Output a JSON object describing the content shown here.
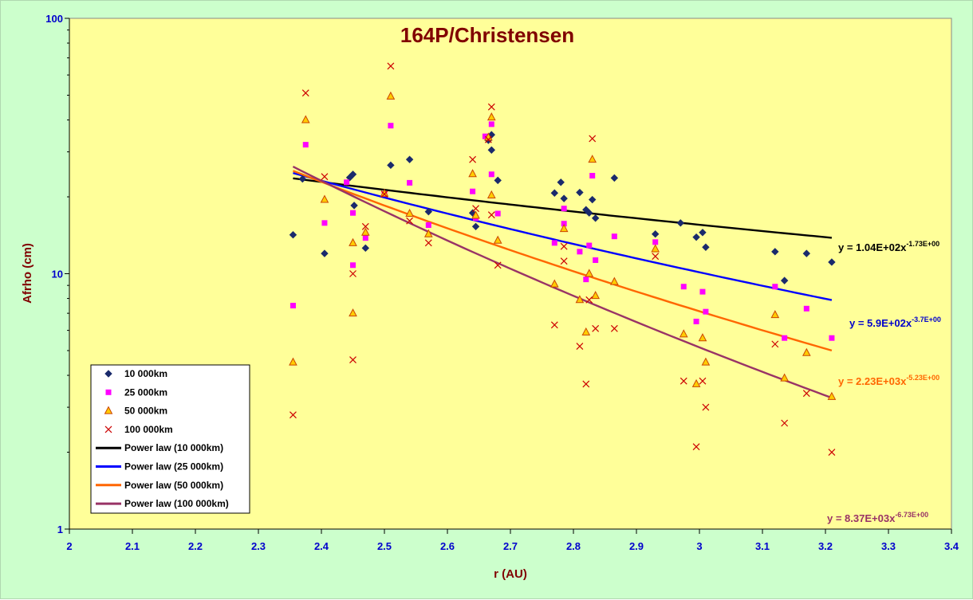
{
  "chart_data": {
    "type": "scatter",
    "title": "164P/Christensen",
    "xlabel": "r (AU)",
    "ylabel": "Afrho (cm)",
    "xlim": [
      2,
      3.4
    ],
    "ylim": [
      1,
      100
    ],
    "yscale": "log",
    "x_ticks": [
      "2",
      "2.1",
      "2.2",
      "2.3",
      "2.4",
      "2.5",
      "2.6",
      "2.7",
      "2.8",
      "2.9",
      "3",
      "3.1",
      "3.2",
      "3.3",
      "3.4"
    ],
    "y_ticks": [
      "1",
      "10",
      "100"
    ],
    "grid": false,
    "legend_position": "bottom-left",
    "colors": {
      "background": "#ccffcc",
      "plot_area": "#ffff99",
      "axis_text": "#0000cc",
      "title": "#800000"
    },
    "series": [
      {
        "name": "10 000km",
        "marker": "diamond",
        "color": "#1a2a6c",
        "points": [
          [
            2.355,
            14.2
          ],
          [
            2.37,
            23.5
          ],
          [
            2.405,
            12
          ],
          [
            2.445,
            23.8
          ],
          [
            2.45,
            24.5
          ],
          [
            2.452,
            18.5
          ],
          [
            2.47,
            12.6
          ],
          [
            2.51,
            26.6
          ],
          [
            2.54,
            28
          ],
          [
            2.57,
            17.5
          ],
          [
            2.64,
            17.3
          ],
          [
            2.645,
            15.3
          ],
          [
            2.665,
            33.3
          ],
          [
            2.67,
            35
          ],
          [
            2.67,
            30.5
          ],
          [
            2.68,
            23.2
          ],
          [
            2.77,
            20.7
          ],
          [
            2.78,
            22.8
          ],
          [
            2.785,
            19.7
          ],
          [
            2.81,
            20.8
          ],
          [
            2.82,
            17.8
          ],
          [
            2.825,
            17.3
          ],
          [
            2.83,
            19.5
          ],
          [
            2.835,
            16.5
          ],
          [
            2.865,
            23.7
          ],
          [
            2.93,
            14.3
          ],
          [
            2.97,
            15.8
          ],
          [
            2.995,
            13.9
          ],
          [
            3.005,
            14.5
          ],
          [
            3.01,
            12.7
          ],
          [
            3.12,
            12.2
          ],
          [
            3.135,
            9.4
          ],
          [
            3.17,
            12
          ],
          [
            3.21,
            11.1
          ]
        ]
      },
      {
        "name": "25 000km",
        "marker": "square",
        "color": "#ff00ff",
        "points": [
          [
            2.355,
            7.5
          ],
          [
            2.375,
            32
          ],
          [
            2.405,
            15.8
          ],
          [
            2.44,
            22.8
          ],
          [
            2.45,
            17.3
          ],
          [
            2.45,
            10.8
          ],
          [
            2.47,
            13.8
          ],
          [
            2.5,
            20.5
          ],
          [
            2.51,
            38
          ],
          [
            2.54,
            22.7
          ],
          [
            2.57,
            15.5
          ],
          [
            2.64,
            21
          ],
          [
            2.645,
            16.5
          ],
          [
            2.66,
            34.5
          ],
          [
            2.67,
            38.5
          ],
          [
            2.67,
            24.5
          ],
          [
            2.68,
            17.2
          ],
          [
            2.77,
            13.2
          ],
          [
            2.785,
            18
          ],
          [
            2.785,
            15.7
          ],
          [
            2.81,
            12.2
          ],
          [
            2.82,
            9.5
          ],
          [
            2.825,
            12.9
          ],
          [
            2.83,
            24.2
          ],
          [
            2.835,
            11.3
          ],
          [
            2.865,
            14
          ],
          [
            2.93,
            13.3
          ],
          [
            2.975,
            8.9
          ],
          [
            2.995,
            6.5
          ],
          [
            3.005,
            8.5
          ],
          [
            3.01,
            7.1
          ],
          [
            3.12,
            8.9
          ],
          [
            3.135,
            5.6
          ],
          [
            3.17,
            7.3
          ],
          [
            3.21,
            5.6
          ]
        ]
      },
      {
        "name": "50 000km",
        "marker": "triangle",
        "color": "#cc4400",
        "fill": "#ffcc00",
        "points": [
          [
            2.355,
            4.5
          ],
          [
            2.375,
            40
          ],
          [
            2.405,
            19.5
          ],
          [
            2.45,
            13.2
          ],
          [
            2.45,
            7
          ],
          [
            2.47,
            14.5
          ],
          [
            2.5,
            20.6
          ],
          [
            2.51,
            49.5
          ],
          [
            2.54,
            17.2
          ],
          [
            2.57,
            14.3
          ],
          [
            2.64,
            24.6
          ],
          [
            2.645,
            16.9
          ],
          [
            2.665,
            34.2
          ],
          [
            2.67,
            41
          ],
          [
            2.67,
            20.3
          ],
          [
            2.68,
            13.5
          ],
          [
            2.77,
            9.1
          ],
          [
            2.785,
            15
          ],
          [
            2.81,
            7.9
          ],
          [
            2.82,
            5.9
          ],
          [
            2.825,
            10
          ],
          [
            2.83,
            28
          ],
          [
            2.835,
            8.2
          ],
          [
            2.865,
            9.3
          ],
          [
            2.93,
            12.5
          ],
          [
            2.975,
            5.8
          ],
          [
            2.995,
            3.7
          ],
          [
            3.005,
            5.6
          ],
          [
            3.01,
            4.5
          ],
          [
            3.12,
            6.9
          ],
          [
            3.135,
            3.9
          ],
          [
            3.17,
            4.9
          ],
          [
            3.21,
            3.3
          ]
        ]
      },
      {
        "name": "100 000km",
        "marker": "x",
        "color": "#cc0000",
        "points": [
          [
            2.355,
            2.8
          ],
          [
            2.375,
            51
          ],
          [
            2.405,
            24
          ],
          [
            2.45,
            10
          ],
          [
            2.45,
            4.6
          ],
          [
            2.47,
            15.3
          ],
          [
            2.5,
            20.5
          ],
          [
            2.51,
            65
          ],
          [
            2.54,
            16.1
          ],
          [
            2.57,
            13.2
          ],
          [
            2.64,
            28
          ],
          [
            2.645,
            18
          ],
          [
            2.665,
            33.5
          ],
          [
            2.67,
            45
          ],
          [
            2.67,
            17
          ],
          [
            2.68,
            10.8
          ],
          [
            2.77,
            6.3
          ],
          [
            2.785,
            11.2
          ],
          [
            2.785,
            12.8
          ],
          [
            2.81,
            5.2
          ],
          [
            2.82,
            3.7
          ],
          [
            2.825,
            7.9
          ],
          [
            2.83,
            33.8
          ],
          [
            2.835,
            6.1
          ],
          [
            2.865,
            6.1
          ],
          [
            2.93,
            11.7
          ],
          [
            2.975,
            3.8
          ],
          [
            2.995,
            2.1
          ],
          [
            3.005,
            3.8
          ],
          [
            3.01,
            3
          ],
          [
            3.12,
            5.3
          ],
          [
            3.135,
            2.6
          ],
          [
            3.17,
            3.4
          ],
          [
            3.21,
            2
          ]
        ]
      }
    ],
    "trendlines": [
      {
        "name": "Power law (10 000km)",
        "color": "#000000",
        "a": 104,
        "b": -1.73,
        "x_range": [
          2.355,
          3.21
        ],
        "equation": "y = 1.04E+02x",
        "exponent": "-1.73E+00",
        "label_color": "#000000"
      },
      {
        "name": "Power law (25 000km)",
        "color": "#0000ff",
        "a": 590,
        "b": -3.7,
        "x_range": [
          2.355,
          3.21
        ],
        "equation": "y = 5.9E+02x",
        "exponent": "-3.7E+00",
        "label_color": "#0000cc"
      },
      {
        "name": "Power law (50 000km)",
        "color": "#ff6600",
        "a": 2230,
        "b": -5.23,
        "x_range": [
          2.355,
          3.21
        ],
        "equation": "y = 2.23E+03x",
        "exponent": "-5.23E+00",
        "label_color": "#ff6600"
      },
      {
        "name": "Power law (100 000km)",
        "color": "#993366",
        "a": 8370,
        "b": -6.73,
        "x_range": [
          2.355,
          3.21
        ],
        "equation": "y = 8.37E+03x",
        "exponent": "-6.73E+00",
        "label_color": "#993366"
      }
    ]
  }
}
